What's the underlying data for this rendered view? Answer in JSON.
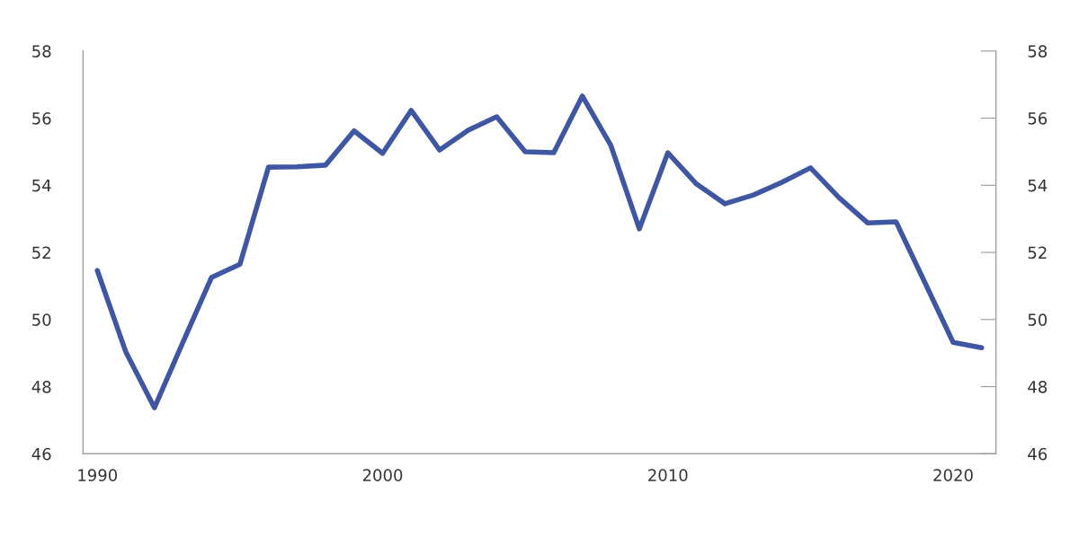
{
  "chart_data": {
    "type": "line",
    "color": "#3f57a3",
    "x": [
      1990,
      1991,
      1992,
      1993,
      1994,
      1995,
      1996,
      1997,
      1998,
      1999,
      2000,
      2001,
      2002,
      2003,
      2004,
      2005,
      2006,
      2007,
      2008,
      2009,
      2010,
      2011,
      2012,
      2013,
      2014,
      2015,
      2016,
      2017,
      2018,
      2019,
      2020,
      2021
    ],
    "values": [
      51.46,
      49.03,
      47.37,
      49.32,
      51.25,
      51.65,
      54.54,
      54.55,
      54.6,
      55.62,
      54.95,
      56.23,
      55.05,
      55.64,
      56.04,
      55.0,
      54.97,
      56.66,
      55.19,
      52.7,
      54.97,
      54.04,
      53.45,
      53.71,
      54.09,
      54.52,
      53.63,
      52.88,
      52.91,
      51.12,
      49.32,
      49.16
    ],
    "xlim": [
      1989.5,
      2021.5
    ],
    "xticks": [
      1990,
      2000,
      2010,
      2020
    ],
    "ylim": [
      46,
      58
    ],
    "yticks": [
      46,
      48,
      50,
      52,
      54,
      56,
      58
    ],
    "y2lim": [
      46,
      58
    ],
    "y2ticks": [
      46,
      48,
      50,
      52,
      54,
      56,
      58
    ],
    "grid": false,
    "legend": false,
    "marker": "none",
    "line_style": "solid"
  }
}
